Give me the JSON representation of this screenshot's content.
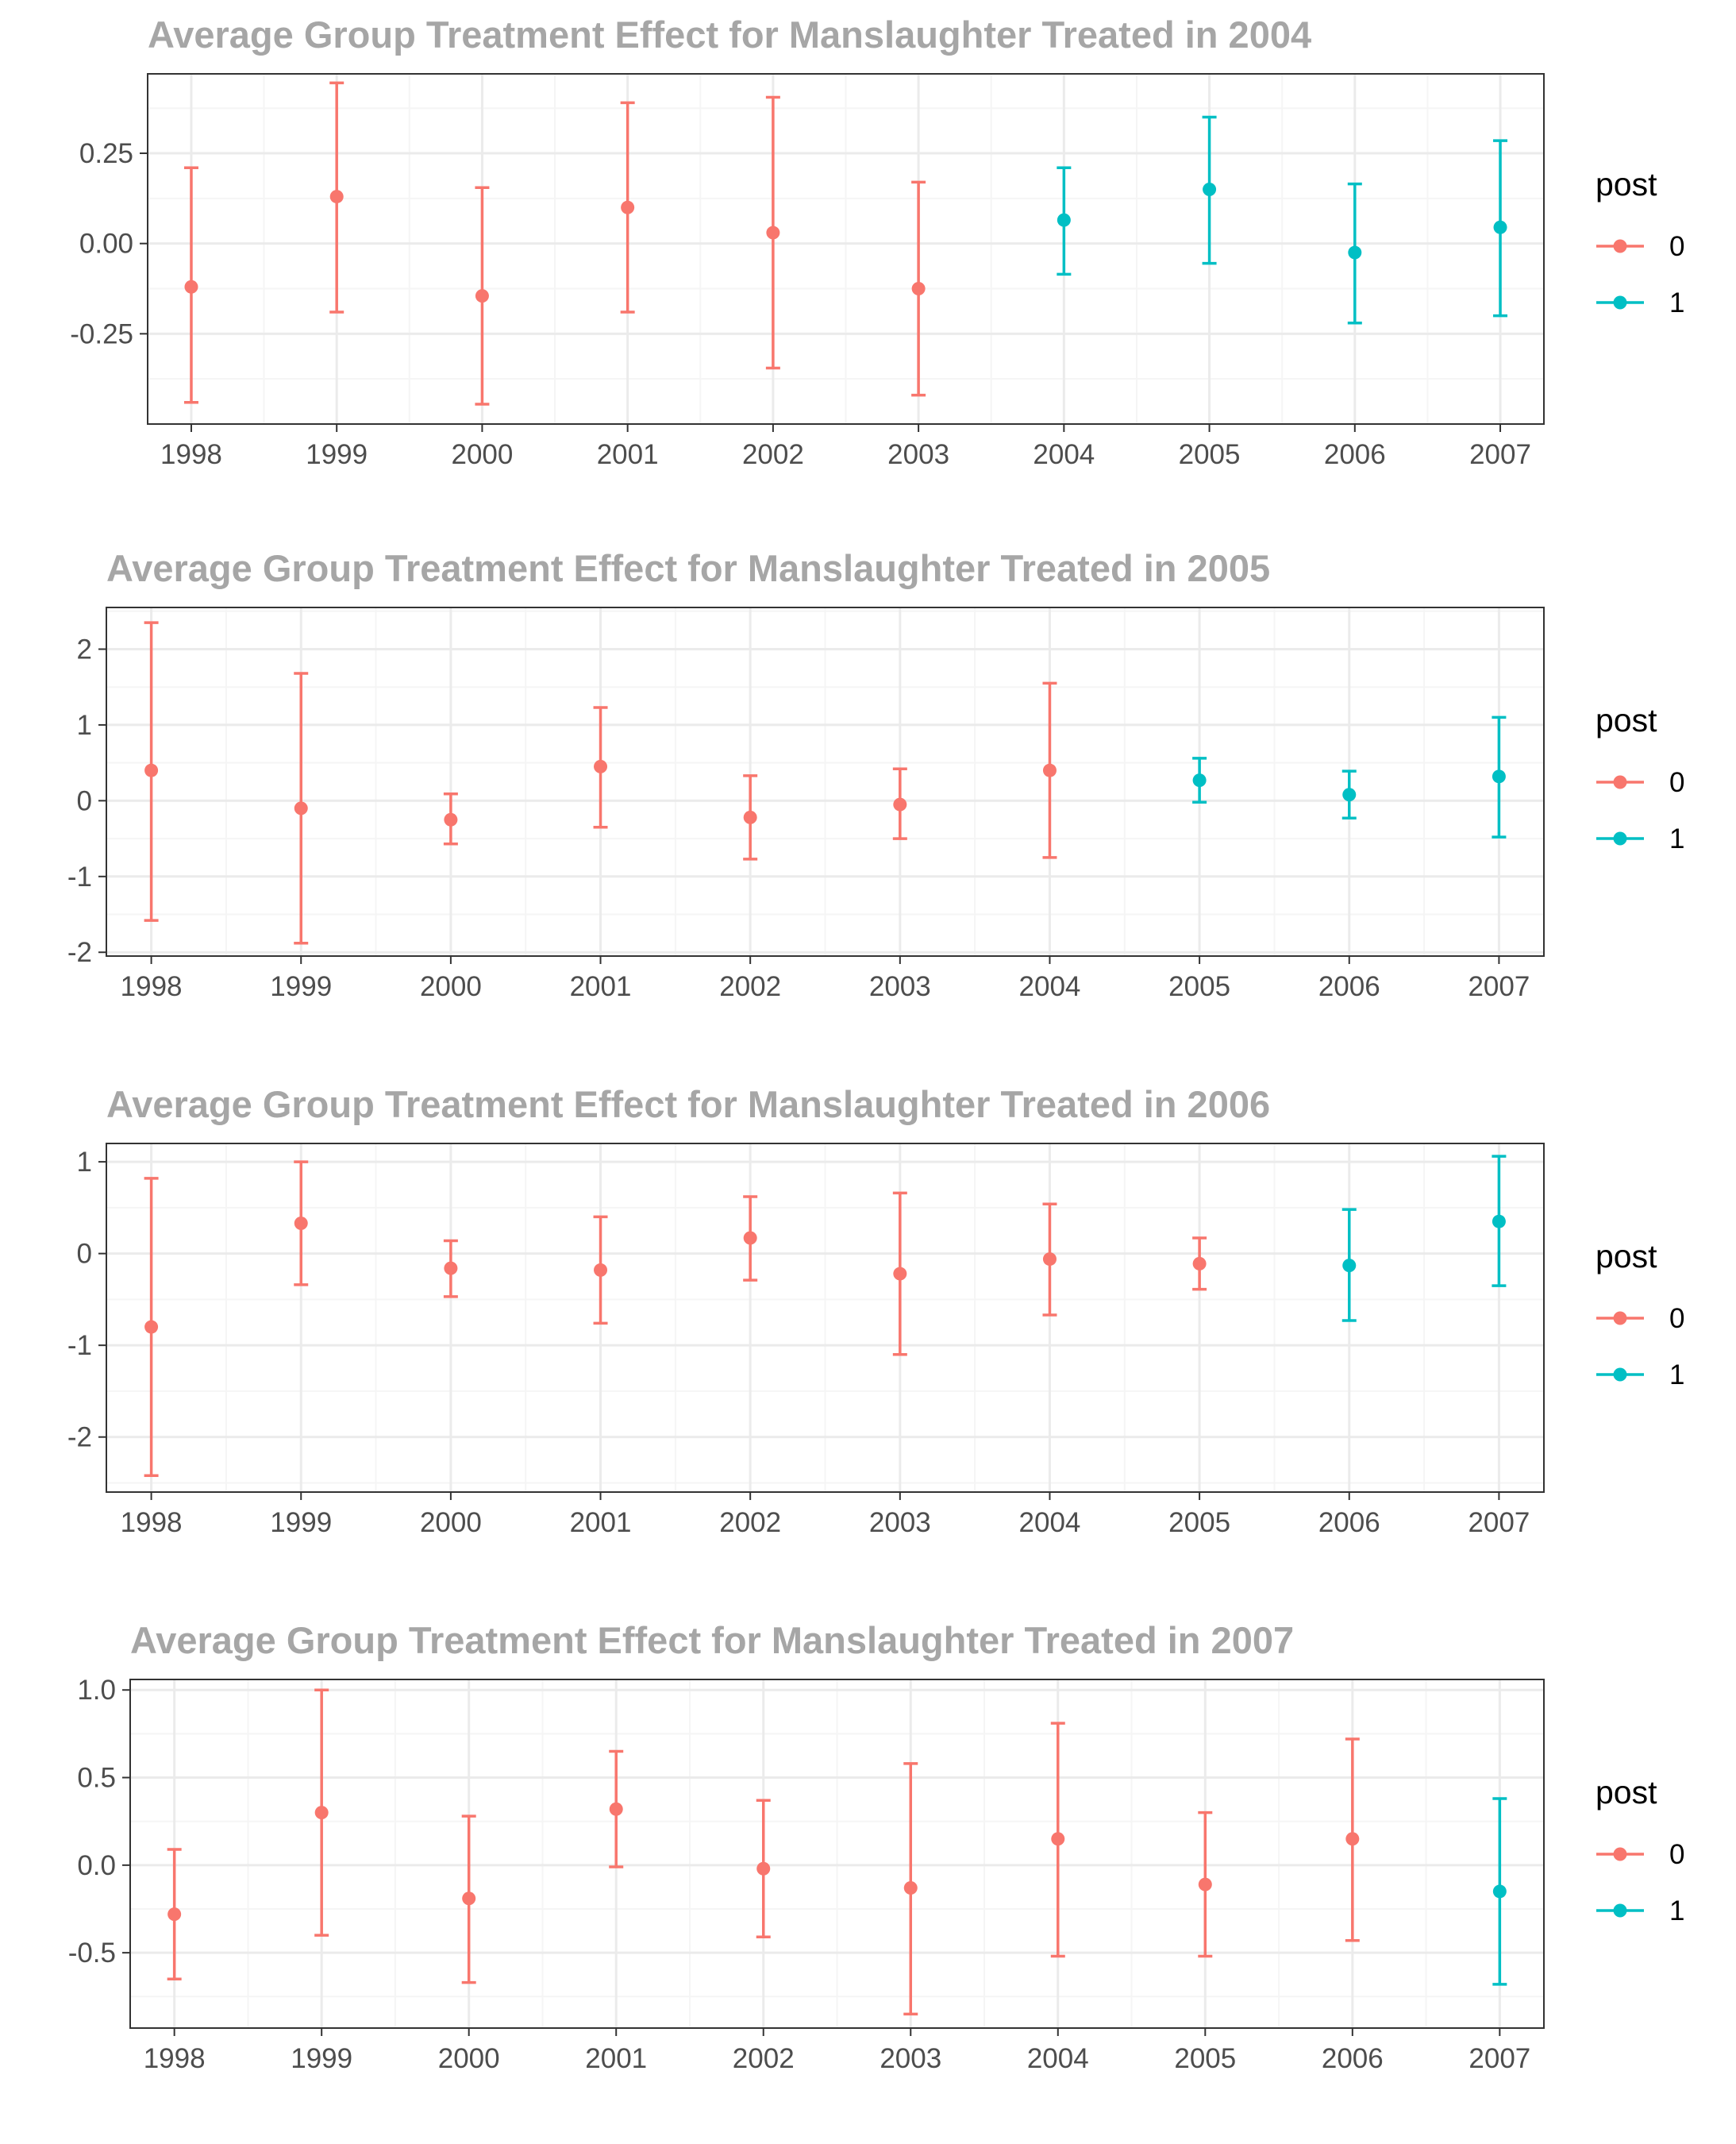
{
  "colors": {
    "pre": "#F8766D",
    "post": "#00BFC4",
    "title": "#a6a6a6",
    "grid_major": "#ebebeb",
    "grid_minor": "#f5f5f5",
    "panel_border": "#333333",
    "tick_text": "#4d4d4d"
  },
  "chart_data": [
    {
      "type": "scatter",
      "title": "Average Group Treatment Effect for Manslaughter Treated in 2004",
      "xlabel": "",
      "ylabel": "",
      "categories": [
        "1998",
        "1999",
        "2000",
        "2001",
        "2002",
        "2003",
        "2004",
        "2005",
        "2006",
        "2007"
      ],
      "ylim": [
        -0.5,
        0.47
      ],
      "yticks": [
        -0.25,
        0.0,
        0.25
      ],
      "yticklabels": [
        "-0.25",
        "0.00",
        "0.25"
      ],
      "values": [
        -0.12,
        0.13,
        -0.145,
        0.1,
        0.03,
        -0.125,
        0.065,
        0.15,
        -0.025,
        0.045
      ],
      "lower": [
        -0.44,
        -0.19,
        -0.445,
        -0.19,
        -0.345,
        -0.42,
        -0.085,
        -0.055,
        -0.22,
        -0.2
      ],
      "upper": [
        0.21,
        0.445,
        0.155,
        0.39,
        0.405,
        0.17,
        0.21,
        0.35,
        0.165,
        0.285
      ],
      "post": [
        0,
        0,
        0,
        0,
        0,
        0,
        1,
        1,
        1,
        1
      ],
      "legend": {
        "title": "post",
        "labels": [
          "0",
          "1"
        ],
        "position": "right"
      },
      "grid": true
    },
    {
      "type": "scatter",
      "title": "Average Group Treatment Effect for Manslaughter Treated in 2005",
      "xlabel": "",
      "ylabel": "",
      "categories": [
        "1998",
        "1999",
        "2000",
        "2001",
        "2002",
        "2003",
        "2004",
        "2005",
        "2006",
        "2007"
      ],
      "ylim": [
        -2.05,
        2.55
      ],
      "yticks": [
        -2,
        -1,
        0,
        1,
        2
      ],
      "yticklabels": [
        "-2",
        "-1",
        "0",
        "1",
        "2"
      ],
      "values": [
        0.4,
        -0.1,
        -0.25,
        0.45,
        -0.22,
        -0.05,
        0.4,
        0.27,
        0.08,
        0.32
      ],
      "lower": [
        -1.58,
        -1.88,
        -0.57,
        -0.35,
        -0.77,
        -0.5,
        -0.75,
        -0.02,
        -0.23,
        -0.48
      ],
      "upper": [
        2.35,
        1.68,
        0.09,
        1.23,
        0.33,
        0.42,
        1.55,
        0.56,
        0.39,
        1.1
      ],
      "post": [
        0,
        0,
        0,
        0,
        0,
        0,
        0,
        1,
        1,
        1
      ],
      "legend": {
        "title": "post",
        "labels": [
          "0",
          "1"
        ],
        "position": "right"
      },
      "grid": true
    },
    {
      "type": "scatter",
      "title": "Average Group Treatment Effect for Manslaughter Treated in 2006",
      "xlabel": "",
      "ylabel": "",
      "categories": [
        "1998",
        "1999",
        "2000",
        "2001",
        "2002",
        "2003",
        "2004",
        "2005",
        "2006",
        "2007"
      ],
      "ylim": [
        -2.6,
        1.2
      ],
      "yticks": [
        -2,
        -1,
        0,
        1
      ],
      "yticklabels": [
        "-2",
        "-1",
        "0",
        "1"
      ],
      "values": [
        -0.8,
        0.33,
        -0.16,
        -0.18,
        0.17,
        -0.22,
        -0.06,
        -0.11,
        -0.13,
        0.35
      ],
      "lower": [
        -2.42,
        -0.34,
        -0.47,
        -0.76,
        -0.29,
        -1.1,
        -0.67,
        -0.39,
        -0.73,
        -0.35
      ],
      "upper": [
        0.82,
        1.0,
        0.14,
        0.4,
        0.62,
        0.66,
        0.54,
        0.17,
        0.48,
        1.06
      ],
      "post": [
        0,
        0,
        0,
        0,
        0,
        0,
        0,
        0,
        1,
        1
      ],
      "legend": {
        "title": "post",
        "labels": [
          "0",
          "1"
        ],
        "position": "right"
      },
      "grid": true
    },
    {
      "type": "scatter",
      "title": "Average Group Treatment Effect for Manslaughter Treated in 2007",
      "xlabel": "",
      "ylabel": "",
      "categories": [
        "1998",
        "1999",
        "2000",
        "2001",
        "2002",
        "2003",
        "2004",
        "2005",
        "2006",
        "2007"
      ],
      "ylim": [
        -0.93,
        1.06
      ],
      "yticks": [
        -0.5,
        0.0,
        0.5,
        1.0
      ],
      "yticklabels": [
        "-0.5",
        "0.0",
        "0.5",
        "1.0"
      ],
      "values": [
        -0.28,
        0.3,
        -0.19,
        0.32,
        -0.02,
        -0.13,
        0.15,
        -0.11,
        0.15,
        -0.15
      ],
      "lower": [
        -0.65,
        -0.4,
        -0.67,
        -0.01,
        -0.41,
        -0.85,
        -0.52,
        -0.52,
        -0.43,
        -0.68
      ],
      "upper": [
        0.09,
        1.0,
        0.28,
        0.65,
        0.37,
        0.58,
        0.81,
        0.3,
        0.72,
        0.38
      ],
      "post": [
        0,
        0,
        0,
        0,
        0,
        0,
        0,
        0,
        0,
        1
      ],
      "legend": {
        "title": "post",
        "labels": [
          "0",
          "1"
        ],
        "position": "right"
      },
      "grid": true
    }
  ]
}
